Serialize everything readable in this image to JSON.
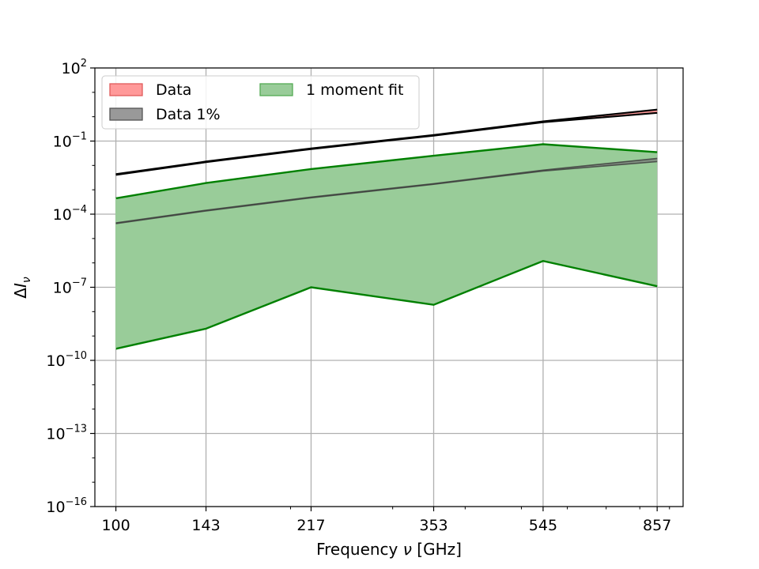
{
  "chart_data": {
    "type": "area",
    "xlabel_parts": [
      "Frequency ",
      "ν",
      " [GHz]"
    ],
    "ylabel_parts": [
      "Δ",
      "I",
      "ν"
    ],
    "x_scale": "log",
    "y_scale": "log",
    "xlim": [
      92,
      950
    ],
    "ylim": [
      1e-16,
      100
    ],
    "x_ticks": [
      100,
      143,
      217,
      353,
      545,
      857
    ],
    "x_tick_labels": [
      "100",
      "143",
      "217",
      "353",
      "545",
      "857"
    ],
    "y_ticks": [
      1e-16,
      1e-13,
      1e-10,
      1e-07,
      0.0001,
      0.1,
      100
    ],
    "y_tick_labels": [
      {
        "base": "10",
        "exp": "−16"
      },
      {
        "base": "10",
        "exp": "−13"
      },
      {
        "base": "10",
        "exp": "−10"
      },
      {
        "base": "10",
        "exp": "−7"
      },
      {
        "base": "10",
        "exp": "−4"
      },
      {
        "base": "10",
        "exp": "−1"
      },
      {
        "base": "10",
        "exp": "2"
      }
    ],
    "grid": true,
    "legend_placement": "upper-left",
    "legend": [
      {
        "label": "Data",
        "color": "#ff9999",
        "edge": "#e05a5a"
      },
      {
        "label": "Data 1%",
        "color": "#999999",
        "edge": "#555555"
      },
      {
        "label": "1 moment fit",
        "color": "#99cc99",
        "edge": "#55aa55"
      }
    ],
    "series": [
      {
        "name": "Data",
        "kind": "band",
        "x": [
          100,
          143,
          217,
          353,
          545,
          857
        ],
        "lower": [
          0.0041,
          0.0136,
          0.047,
          0.168,
          0.59,
          1.44
        ],
        "upper": [
          0.0044,
          0.0145,
          0.05,
          0.178,
          0.64,
          1.95
        ],
        "color": "#000000"
      },
      {
        "name": "Data 1%",
        "kind": "band",
        "x": [
          100,
          143,
          217,
          353,
          545,
          857
        ],
        "lower": [
          4.1e-05,
          0.000136,
          0.00047,
          0.00168,
          0.0059,
          0.0144
        ],
        "upper": [
          4.4e-05,
          0.000145,
          0.0005,
          0.00178,
          0.0064,
          0.0195
        ],
        "color": "#444444"
      },
      {
        "name": "1 moment fit",
        "kind": "band",
        "x": [
          100,
          143,
          217,
          353,
          545,
          857
        ],
        "lower": [
          3e-10,
          2e-09,
          1e-07,
          1.9e-08,
          1.2e-06,
          1.1e-07
        ],
        "upper": [
          0.00045,
          0.0019,
          0.0071,
          0.025,
          0.074,
          0.035
        ],
        "color": "#008000"
      }
    ]
  }
}
